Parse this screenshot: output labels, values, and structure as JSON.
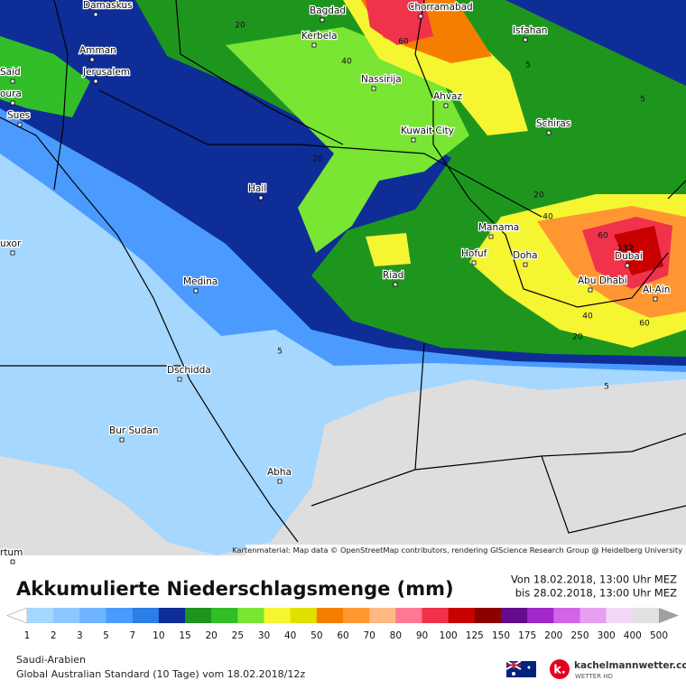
{
  "map": {
    "cities": [
      "Damaskus",
      "Bagdad",
      "Chorramabad",
      "Kerbela",
      "Isfahan",
      "Amman",
      "Jerusalem",
      "Said",
      "oura",
      "Sues",
      "Nassirija",
      "Ahvaz",
      "Kuwait City",
      "Schiras",
      "Hail",
      "Manama",
      "Hofuf",
      "Doha",
      "Dubai",
      "Abu Dhabi",
      "Al-Ain",
      "uxor",
      "Riad",
      "Medina",
      "Dschidda",
      "Bur Sudan",
      "Abha",
      "rtum"
    ],
    "contour_labels": [
      "20",
      "40",
      "60",
      "5",
      "5",
      "20",
      "20",
      "40",
      "60",
      "132",
      "40",
      "60",
      "20",
      "5",
      "5"
    ],
    "attribution": "Kartenmaterial: Map data © OpenStreetMap contributors, rendering GIScience Research Group @ Heidelberg University"
  },
  "legend": {
    "title": "Akkumulierte Niederschlagsmenge (mm)",
    "period_from": "Von 18.02.2018, 13:00 Uhr MEZ",
    "period_to": "bis 28.02.2018, 13:00 Uhr MEZ",
    "colorbar": {
      "labels": [
        1,
        2,
        3,
        5,
        7,
        10,
        15,
        20,
        25,
        30,
        40,
        50,
        60,
        70,
        80,
        90,
        100,
        125,
        150,
        175,
        200,
        250,
        300,
        400,
        500
      ],
      "colors": [
        "#a5d7ff",
        "#8cc8ff",
        "#6eb4ff",
        "#4b9bff",
        "#2d7de6",
        "#0f2d96",
        "#1e961e",
        "#32be28",
        "#78e632",
        "#f5f532",
        "#e1e100",
        "#f57d00",
        "#ff9632",
        "#ffb982",
        "#ff7896",
        "#f0324b",
        "#c80000",
        "#8c0000",
        "#640a8c",
        "#a028c8",
        "#d264e6",
        "#e6a0f0",
        "#f5d7fa",
        "#e1e1e1"
      ],
      "under_color": "#ffffff",
      "over_color": "#a0a0a0"
    }
  },
  "footer": {
    "region": "Saudi-Arabien",
    "model": "Global Australian Standard (10 Tage) vom 18.02.2018/12z",
    "logo": {
      "mark": "k.",
      "name": "kachelmannwetter.com",
      "tagline": "WETTER HD"
    }
  }
}
